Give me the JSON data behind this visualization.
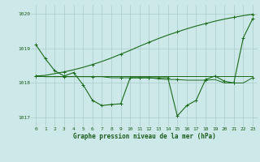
{
  "xlabel": "Graphe pression niveau de la mer (hPa)",
  "background_color": "#cce8e8",
  "grid_color": "#aacccc",
  "line_color": "#1a6b1a",
  "text_color": "#1a5c1a",
  "hours": [
    0,
    1,
    2,
    3,
    4,
    5,
    6,
    7,
    8,
    9,
    10,
    11,
    12,
    13,
    14,
    15,
    16,
    17,
    18,
    19,
    20,
    21,
    22,
    23
  ],
  "series": {
    "line1": [
      1019.1,
      1018.7,
      1018.35,
      1018.2,
      1018.3,
      1017.95,
      1017.5,
      1017.35,
      1017.38,
      1017.4,
      1018.15,
      1018.15,
      1018.15,
      1018.15,
      1018.15,
      1017.05,
      1017.35,
      1017.5,
      1018.1,
      1018.2,
      1018.05,
      1018.0,
      1019.3,
      1019.85
    ],
    "line2": [
      1018.2,
      1018.2,
      1018.2,
      1018.2,
      1018.2,
      1018.2,
      1018.2,
      1018.2,
      1018.2,
      1018.2,
      1018.2,
      1018.2,
      1018.2,
      1018.2,
      1018.2,
      1018.2,
      1018.2,
      1018.2,
      1018.2,
      1018.2,
      1018.2,
      1018.2,
      1018.2,
      1018.2
    ],
    "line3": [
      1018.2,
      1018.22,
      1018.27,
      1018.32,
      1018.38,
      1018.45,
      1018.53,
      1018.62,
      1018.72,
      1018.83,
      1018.94,
      1019.06,
      1019.17,
      1019.28,
      1019.38,
      1019.47,
      1019.56,
      1019.64,
      1019.71,
      1019.78,
      1019.84,
      1019.89,
      1019.94,
      1019.98
    ],
    "line4": [
      1018.2,
      1018.18,
      1018.18,
      1018.18,
      1018.18,
      1018.18,
      1018.18,
      1018.18,
      1018.15,
      1018.15,
      1018.15,
      1018.15,
      1018.15,
      1018.12,
      1018.1,
      1018.1,
      1018.08,
      1018.08,
      1018.08,
      1018.1,
      1018.0,
      1018.0,
      1018.0,
      1018.15
    ]
  },
  "ylim": [
    1016.75,
    1020.25
  ],
  "yticks": [
    1017,
    1018,
    1019,
    1020
  ],
  "xticks": [
    0,
    1,
    2,
    3,
    4,
    5,
    6,
    7,
    8,
    9,
    10,
    11,
    12,
    13,
    14,
    15,
    16,
    17,
    18,
    19,
    20,
    21,
    22,
    23
  ],
  "figsize": [
    3.2,
    2.0
  ],
  "dpi": 100
}
